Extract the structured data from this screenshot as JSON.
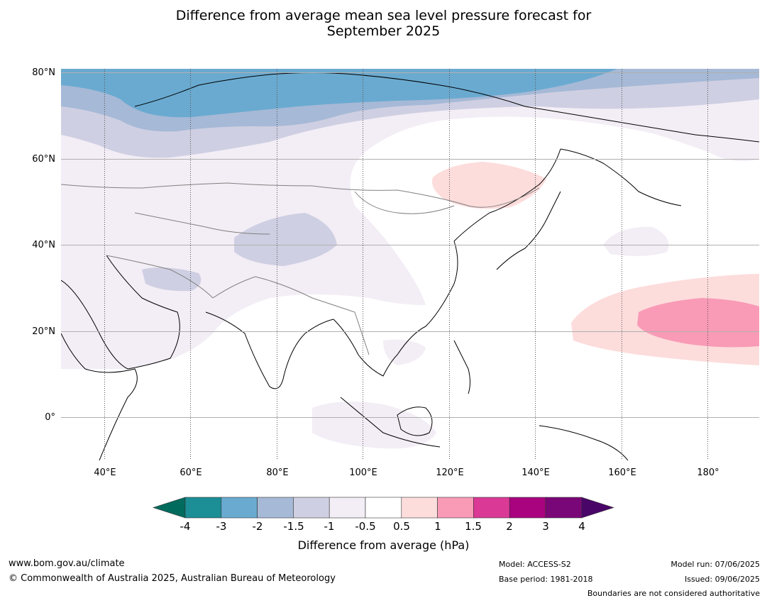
{
  "title": {
    "line1": "Difference from average mean sea level pressure forecast for",
    "line2": "September 2025"
  },
  "map": {
    "lat_labels": [
      "80°N",
      "60°N",
      "40°N",
      "20°N",
      "0°"
    ],
    "lon_labels": [
      "40°E",
      "60°E",
      "80°E",
      "100°E",
      "120°E",
      "140°E",
      "160°E",
      "180°"
    ]
  },
  "colorbar": {
    "label": "Difference from average (hPa)",
    "ticks": [
      "-4",
      "-3",
      "-2",
      "-1.5",
      "-1",
      "-0.5",
      "0.5",
      "1",
      "1.5",
      "2",
      "3",
      "4"
    ],
    "colors": [
      "#1b8e96",
      "#6aaad0",
      "#a6b9d6",
      "#cfcfe3",
      "#f3edf5",
      "#ffffff",
      "#fddcdc",
      "#f99bb6",
      "#da3a96",
      "#a9037f",
      "#7a0777"
    ],
    "extend_low_color": "#016b5e",
    "extend_high_color": "#490668"
  },
  "footer": {
    "website": "www.bom.gov.au/climate",
    "copyright": "© Commonwealth of Australia 2025, Australian Bureau of Meteorology",
    "model": "Model: ACCESS-S2",
    "base_period": "Base period: 1981-2018",
    "model_run": "Model run: 07/06/2025",
    "issued": "Issued: 09/06/2025",
    "disclaimer": "Boundaries are not considered authoritative"
  }
}
